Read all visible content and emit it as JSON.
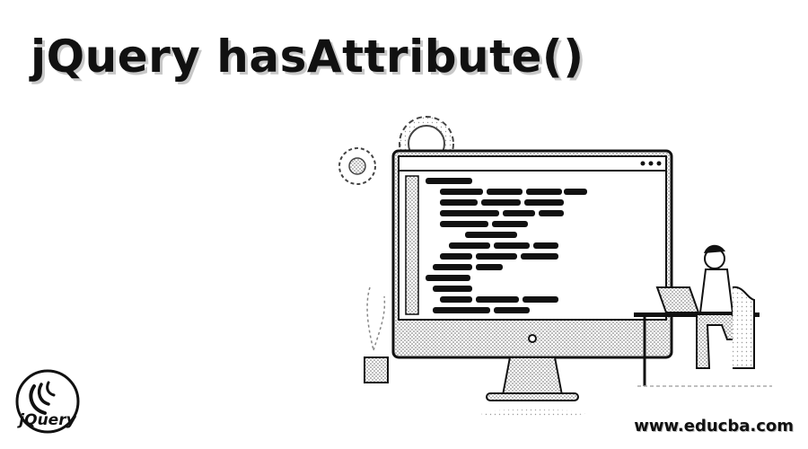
{
  "header": {
    "title": "jQuery hasAttribute()"
  },
  "logo": {
    "label": "jQuery"
  },
  "footer": {
    "watermark": "www.educba.com"
  },
  "colors": {
    "ink": "#111111",
    "dither": "#cfcfcf",
    "background": "#ffffff"
  }
}
